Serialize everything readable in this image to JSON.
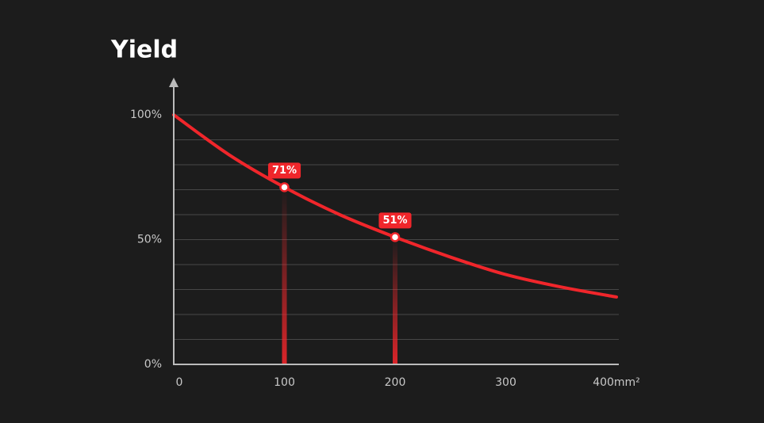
{
  "chart_data": {
    "type": "line",
    "title": "Yield",
    "x": [
      0,
      50,
      100,
      150,
      200,
      250,
      300,
      350,
      400
    ],
    "values": [
      100,
      84,
      71,
      60,
      51,
      43,
      36,
      31,
      27
    ],
    "value_labels": [
      null,
      null,
      "71%",
      null,
      "51%",
      null,
      null,
      null,
      null
    ],
    "color": "#f0262b",
    "xlim": [
      0,
      400
    ],
    "xticks": [
      0,
      100,
      200,
      300,
      {
        "value": 400,
        "label": "400mm²"
      }
    ],
    "ylim": [
      0,
      100
    ],
    "yticks": [
      {
        "value": 0,
        "label": "0%"
      },
      {
        "value": 50,
        "label": "50%"
      },
      {
        "value": 100,
        "label": "100%"
      }
    ],
    "grid_lines": [
      10,
      20,
      30,
      40,
      50,
      60,
      70,
      80,
      90,
      100
    ],
    "grid": true
  }
}
